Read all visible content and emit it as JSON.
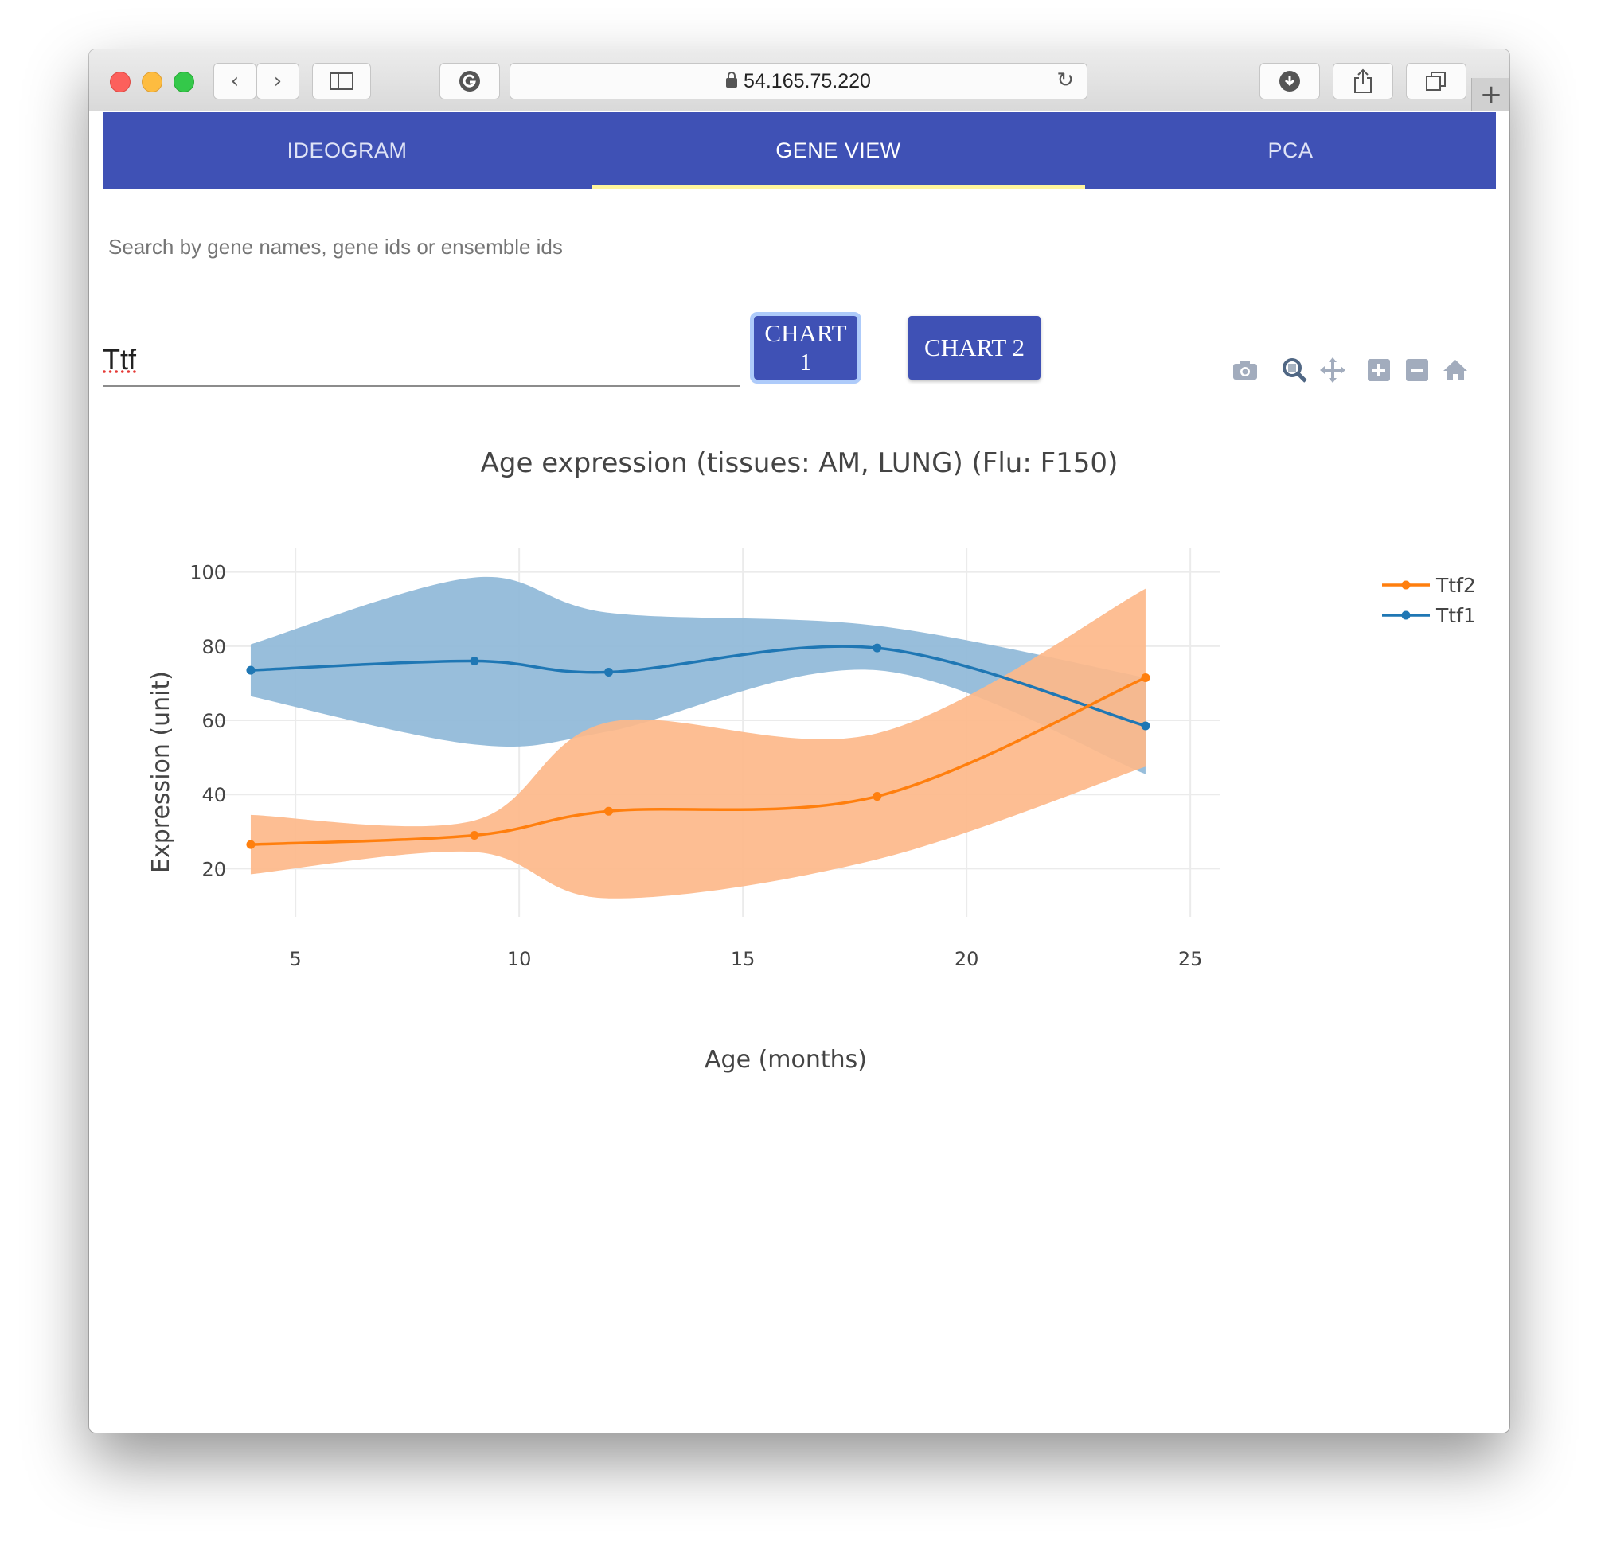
{
  "browser": {
    "url": "54.165.75.220"
  },
  "nav": {
    "tabs": [
      {
        "label": "IDEOGRAM"
      },
      {
        "label": "GENE VIEW",
        "active": true
      },
      {
        "label": "PCA"
      }
    ],
    "bar_color": "#3f51b5",
    "indicator_color": "#fff59d"
  },
  "search": {
    "label": "Search by gene names, gene ids or ensemble ids",
    "value": "Ttf"
  },
  "buttons": {
    "chart1_label": "CHART 1",
    "chart2_label": "CHART 2"
  },
  "modebar": {
    "icons": [
      "camera-icon",
      "zoom-icon",
      "pan-icon",
      "zoom-in-icon",
      "zoom-out-icon",
      "home-icon"
    ]
  },
  "chart_data": {
    "type": "line",
    "title": "Age expression (tissues: AM, LUNG) (Flu: F150)",
    "xlabel": "Age (months)",
    "ylabel": "Expression (unit)",
    "xlim": [
      3.2,
      25.3
    ],
    "ylim": [
      7,
      104
    ],
    "xticks": [
      5,
      10,
      15,
      20,
      25
    ],
    "yticks": [
      20,
      40,
      60,
      80,
      100
    ],
    "grid": true,
    "legend_position": "top-right",
    "series": [
      {
        "name": "Ttf2",
        "color": "#ff7f0e",
        "band_color": "#fdb88a",
        "x": [
          4,
          9,
          12,
          18,
          24
        ],
        "y": [
          26.5,
          29,
          35.5,
          39.5,
          71.5
        ],
        "upper": [
          34.5,
          33,
          59.5,
          56.5,
          95.5
        ],
        "lower": [
          18.5,
          24.5,
          12,
          22.5,
          47.5
        ]
      },
      {
        "name": "Ttf1",
        "color": "#1f77b4",
        "band_color": "#8fb8d8",
        "x": [
          4,
          9,
          12,
          18,
          24
        ],
        "y": [
          73.5,
          76,
          73,
          79.5,
          58.5
        ],
        "upper": [
          80.5,
          98.5,
          89,
          85.5,
          71.5
        ],
        "lower": [
          66.5,
          53.5,
          57,
          73.5,
          45.5
        ]
      }
    ]
  }
}
